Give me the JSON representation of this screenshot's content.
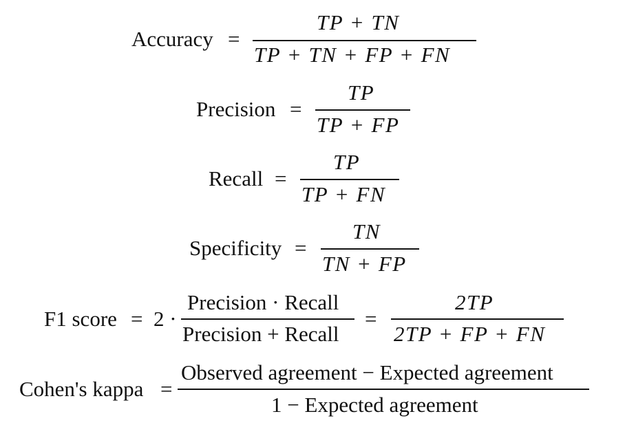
{
  "formulas": {
    "accuracy": {
      "label": "Accuracy",
      "eq": "=",
      "numerator": "TP + TN",
      "denominator": "TP + TN + FP + FN"
    },
    "precision": {
      "label": "Precision",
      "eq": "=",
      "numerator": "TP",
      "denominator": "TP + FP"
    },
    "recall": {
      "label": "Recall",
      "eq": "=",
      "numerator": "TP",
      "denominator": "TP + FN"
    },
    "specificity": {
      "label": "Specificity",
      "eq": "=",
      "numerator": "TN",
      "denominator": "TN + FP"
    },
    "f1": {
      "label": "F1 score",
      "eq": "=",
      "coef": "2 ·",
      "numerator1": "Precision · Recall",
      "denominator1": "Precision + Recall",
      "eq2": "=",
      "numerator2": "2TP",
      "denominator2": "2TP + FP + FN"
    },
    "kappa": {
      "label": "Cohen's kappa",
      "eq": "=",
      "numerator": "Observed agreement − Expected agreement",
      "denominator": "1 − Expected agreement"
    }
  }
}
